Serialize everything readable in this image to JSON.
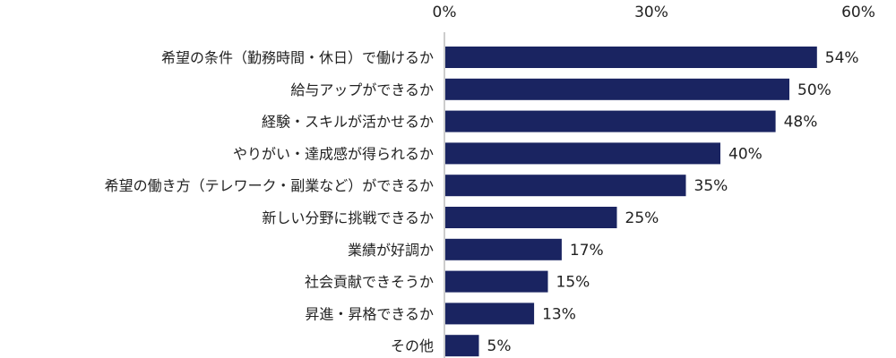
{
  "chart_data": {
    "type": "bar",
    "orientation": "horizontal",
    "categories": [
      "希望の条件（勤務時間・休日）で働けるか",
      "給与アップができるか",
      "経験・スキルが活かせるか",
      "やりがい・達成感が得られるか",
      "希望の働き方（テレワーク・副業など）ができるか",
      "新しい分野に挑戦できるか",
      "業績が好調か",
      "社会貢献できそうか",
      "昇進・昇格できるか",
      "その他"
    ],
    "values": [
      54,
      50,
      48,
      40,
      35,
      25,
      17,
      15,
      13,
      5
    ],
    "value_labels": [
      "54%",
      "50%",
      "48%",
      "40%",
      "35%",
      "25%",
      "17%",
      "15%",
      "13%",
      "5%"
    ],
    "xlim": [
      0,
      60
    ],
    "x_ticks": [
      0,
      30,
      60
    ],
    "x_tick_labels": [
      "0%",
      "30%",
      "60%"
    ],
    "axis_position": "top",
    "grid": false,
    "legend": "none",
    "bar_color": "#1a2461",
    "title": "",
    "xlabel": "",
    "ylabel": ""
  }
}
